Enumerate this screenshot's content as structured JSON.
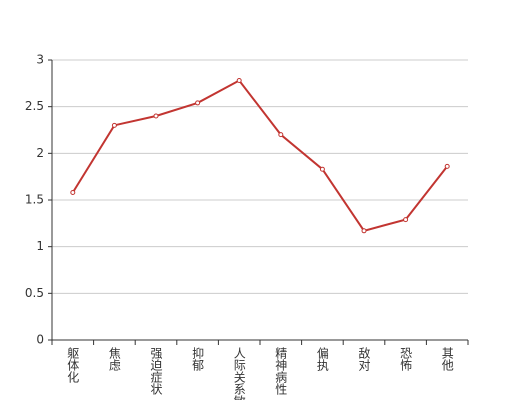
{
  "chart_data": {
    "type": "line",
    "categories": [
      "躯体化",
      "焦虑",
      "强迫症状",
      "抑郁",
      "人际关系敏感",
      "精神病性",
      "偏执",
      "敌对",
      "恐怖",
      "其他"
    ],
    "values": [
      1.58,
      2.3,
      2.4,
      2.54,
      2.78,
      2.2,
      1.83,
      1.17,
      1.29,
      1.86
    ],
    "color": "#c23531",
    "ylim": [
      0,
      3
    ],
    "yticks": [
      0,
      0.5,
      1,
      1.5,
      2,
      2.5,
      3
    ],
    "grid": true
  }
}
